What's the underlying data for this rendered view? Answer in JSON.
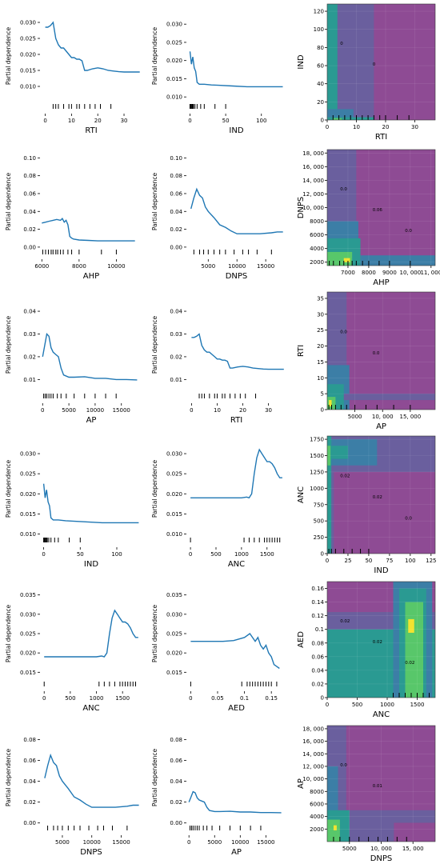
{
  "chart_data": [
    {
      "type": "line",
      "xlabel": "RTI",
      "ylabel": "Partial dependence",
      "xlim": [
        -2,
        37
      ],
      "ylim": [
        0.005,
        0.034
      ],
      "xticks": [
        0,
        10,
        20,
        30
      ],
      "yticks": [
        0.01,
        0.015,
        0.02,
        0.025,
        0.03
      ],
      "x": [
        0,
        1,
        2,
        3,
        4,
        5,
        6,
        7,
        8,
        9,
        10,
        11,
        12,
        13,
        14,
        15,
        16,
        18,
        20,
        22,
        24,
        26,
        28,
        30,
        32,
        34,
        36
      ],
      "y": [
        0.0285,
        0.0285,
        0.029,
        0.03,
        0.025,
        0.023,
        0.022,
        0.022,
        0.021,
        0.02,
        0.019,
        0.019,
        0.0185,
        0.0185,
        0.018,
        0.015,
        0.015,
        0.0155,
        0.0158,
        0.0155,
        0.015,
        0.0148,
        0.0146,
        0.0145,
        0.0145,
        0.0145,
        0.0145
      ],
      "rug": [
        3,
        4,
        5,
        7,
        9,
        10,
        12,
        13,
        15,
        17,
        19,
        21,
        25
      ]
    },
    {
      "type": "line",
      "xlabel": "IND",
      "ylabel": "Partial dependence",
      "xlim": [
        -5,
        135
      ],
      "ylim": [
        0.0085,
        0.034
      ],
      "xticks": [
        0,
        50,
        100
      ],
      "yticks": [
        0.01,
        0.015,
        0.02,
        0.025,
        0.03
      ],
      "x": [
        0,
        2,
        3,
        4,
        6,
        8,
        10,
        13,
        15,
        20,
        30,
        40,
        60,
        80,
        100,
        130
      ],
      "y": [
        0.0225,
        0.019,
        0.02,
        0.021,
        0.018,
        0.017,
        0.014,
        0.0135,
        0.0135,
        0.0135,
        0.0133,
        0.0132,
        0.013,
        0.0128,
        0.0128,
        0.0128
      ],
      "rug": [
        0,
        1,
        2,
        3,
        4,
        5,
        7,
        10,
        15,
        20,
        35,
        50
      ]
    },
    {
      "type": "heatmap",
      "xlabel": "RTI",
      "ylabel": "IND",
      "xlim": [
        0,
        37
      ],
      "ylim": [
        0,
        128
      ],
      "xticks": [
        0,
        10,
        20,
        30
      ],
      "yticks": [
        0,
        20,
        40,
        60,
        80,
        100,
        120
      ],
      "contour_labels": [
        "0",
        "0"
      ],
      "rug": [
        2,
        4,
        6,
        8,
        10,
        12,
        14,
        16,
        18,
        20,
        24,
        28
      ]
    },
    {
      "type": "line",
      "xlabel": "AHP",
      "ylabel": "Partial dependence",
      "xlim": [
        5900,
        11400
      ],
      "ylim": [
        -0.001,
        0.103
      ],
      "xticks": [
        6000,
        8000,
        10000
      ],
      "yticks": [
        0.0,
        0.02,
        0.04,
        0.06,
        0.08,
        0.1
      ],
      "x": [
        6000,
        6200,
        6400,
        6600,
        6800,
        7000,
        7100,
        7200,
        7300,
        7400,
        7500,
        7600,
        7700,
        8000,
        8500,
        9000,
        9500,
        10000,
        11000
      ],
      "y": [
        0.027,
        0.028,
        0.029,
        0.03,
        0.031,
        0.03,
        0.032,
        0.028,
        0.03,
        0.025,
        0.012,
        0.01,
        0.009,
        0.008,
        0.0075,
        0.007,
        0.007,
        0.007,
        0.007
      ],
      "rug": [
        6050,
        6200,
        6350,
        6500,
        6600,
        6750,
        6850,
        7000,
        7150,
        7400,
        7600,
        8000,
        9200,
        10000
      ]
    },
    {
      "type": "line",
      "xlabel": "DNPS",
      "ylabel": "Partial dependence",
      "xlim": [
        1200,
        18600
      ],
      "ylim": [
        -0.001,
        0.103
      ],
      "xticks": [
        5000,
        10000,
        15000
      ],
      "yticks": [
        0.0,
        0.02,
        0.04,
        0.06,
        0.08,
        0.1
      ],
      "x": [
        2000,
        2500,
        3000,
        3500,
        4000,
        4500,
        5000,
        6000,
        7000,
        8000,
        9000,
        10000,
        12000,
        14000,
        16000,
        17000,
        18000
      ],
      "y": [
        0.043,
        0.055,
        0.065,
        0.058,
        0.055,
        0.045,
        0.04,
        0.033,
        0.025,
        0.022,
        0.018,
        0.015,
        0.015,
        0.015,
        0.016,
        0.017,
        0.017
      ],
      "rug": [
        2500,
        3500,
        4200,
        5000,
        6000,
        7000,
        8000,
        9500,
        11000,
        12000,
        13500,
        16000
      ]
    },
    {
      "type": "heatmap",
      "xlabel": "AHP",
      "ylabel": "DNPS",
      "xlim": [
        6000,
        11200
      ],
      "ylim": [
        1500,
        18500
      ],
      "xticks": [
        7000,
        8000,
        9000,
        10000,
        11000
      ],
      "yticks": [
        2000,
        4000,
        6000,
        8000,
        10000,
        12000,
        14000,
        16000,
        18000
      ],
      "contour_labels": [
        "0.0",
        "0.06",
        "0.0"
      ],
      "rug": [
        6100,
        6300,
        6600,
        6800,
        7000,
        7200,
        7400,
        7700,
        8000,
        8500,
        9000,
        10000
      ]
    },
    {
      "type": "line",
      "xlabel": "AP",
      "ylabel": "Partial dependence",
      "xlim": [
        -500,
        19000
      ],
      "ylim": [
        0.0045,
        0.046
      ],
      "xticks": [
        0,
        5000,
        10000,
        15000
      ],
      "yticks": [
        0.01,
        0.02,
        0.03,
        0.04
      ],
      "x": [
        0,
        400,
        800,
        1200,
        1600,
        2000,
        2500,
        3000,
        3500,
        4000,
        5000,
        6000,
        8000,
        10000,
        12000,
        14000,
        16000,
        18000
      ],
      "y": [
        0.02,
        0.025,
        0.03,
        0.029,
        0.024,
        0.022,
        0.021,
        0.02,
        0.015,
        0.012,
        0.011,
        0.011,
        0.0112,
        0.0105,
        0.0105,
        0.01,
        0.01,
        0.0098
      ],
      "rug": [
        200,
        500,
        800,
        1200,
        1600,
        2000,
        2800,
        3500,
        4500,
        6000,
        8000,
        10000,
        12000,
        14000
      ]
    },
    {
      "type": "line",
      "xlabel": "RTI",
      "ylabel": "Partial dependence",
      "xlim": [
        -2,
        37
      ],
      "ylim": [
        0.0045,
        0.046
      ],
      "xticks": [
        0,
        10,
        20,
        30
      ],
      "yticks": [
        0.01,
        0.02,
        0.03,
        0.04
      ],
      "x": [
        0,
        1,
        2,
        3,
        4,
        5,
        6,
        7,
        8,
        9,
        10,
        11,
        12,
        13,
        14,
        15,
        16,
        18,
        20,
        22,
        24,
        26,
        28,
        30,
        32,
        34,
        36
      ],
      "y": [
        0.0285,
        0.0285,
        0.029,
        0.03,
        0.025,
        0.023,
        0.022,
        0.022,
        0.021,
        0.02,
        0.019,
        0.019,
        0.0185,
        0.0185,
        0.018,
        0.015,
        0.015,
        0.0155,
        0.0158,
        0.0155,
        0.015,
        0.0148,
        0.0146,
        0.0145,
        0.0145,
        0.0145,
        0.0145
      ],
      "rug": [
        3,
        4,
        5,
        7,
        9,
        10,
        12,
        13,
        15,
        17,
        19,
        21,
        25
      ]
    },
    {
      "type": "heatmap",
      "xlabel": "AP",
      "ylabel": "RTI",
      "xlim": [
        0,
        19500
      ],
      "ylim": [
        0,
        37
      ],
      "xticks": [
        5000,
        10000,
        15000
      ],
      "yticks": [
        0,
        5,
        10,
        15,
        20,
        25,
        30,
        35
      ],
      "contour_labels": [
        "0.0",
        "0.0"
      ],
      "rug": [
        300,
        800,
        1500,
        2500,
        3500,
        5000,
        7000,
        9000,
        12000,
        15000
      ]
    },
    {
      "type": "line",
      "xlabel": "IND",
      "ylabel": "Partial dependence",
      "xlim": [
        -5,
        135
      ],
      "ylim": [
        0.0095,
        0.033
      ],
      "xticks": [
        0,
        50,
        100
      ],
      "yticks": [
        0.01,
        0.015,
        0.02,
        0.025,
        0.03
      ],
      "x": [
        0,
        2,
        3,
        4,
        6,
        8,
        10,
        13,
        15,
        20,
        30,
        40,
        60,
        80,
        100,
        130
      ],
      "y": [
        0.0225,
        0.019,
        0.02,
        0.021,
        0.018,
        0.017,
        0.014,
        0.0135,
        0.0135,
        0.0135,
        0.0133,
        0.0132,
        0.013,
        0.0128,
        0.0128,
        0.0128
      ],
      "rug": [
        0,
        1,
        2,
        3,
        4,
        5,
        7,
        10,
        15,
        20,
        35,
        50
      ]
    },
    {
      "type": "line",
      "xlabel": "ANC",
      "ylabel": "Partial dependence",
      "xlim": [
        -80,
        1880
      ],
      "ylim": [
        0.0095,
        0.033
      ],
      "xticks": [
        0,
        500,
        1000,
        1500
      ],
      "yticks": [
        0.01,
        0.015,
        0.02,
        0.025,
        0.03
      ],
      "x": [
        0,
        200,
        400,
        600,
        800,
        1000,
        1100,
        1150,
        1200,
        1250,
        1300,
        1350,
        1400,
        1450,
        1500,
        1550,
        1600,
        1650,
        1700,
        1750,
        1800
      ],
      "y": [
        0.019,
        0.019,
        0.019,
        0.019,
        0.019,
        0.019,
        0.0192,
        0.019,
        0.02,
        0.025,
        0.029,
        0.031,
        0.03,
        0.029,
        0.028,
        0.028,
        0.0275,
        0.0265,
        0.025,
        0.024,
        0.024
      ],
      "rug": [
        0,
        1050,
        1150,
        1250,
        1350,
        1450,
        1500,
        1550,
        1600,
        1650,
        1700,
        1750
      ]
    },
    {
      "type": "heatmap",
      "xlabel": "IND",
      "ylabel": "ANC",
      "xlim": [
        0,
        130
      ],
      "ylim": [
        0,
        1800
      ],
      "xticks": [
        0,
        25,
        50,
        75,
        100,
        125
      ],
      "yticks": [
        0,
        250,
        500,
        750,
        1000,
        1250,
        1500,
        1750
      ],
      "contour_labels": [
        "0.02",
        "0.02",
        "0.0"
      ],
      "rug": [
        2,
        5,
        10,
        20,
        30,
        40,
        50
      ]
    },
    {
      "type": "line",
      "xlabel": "ANC",
      "ylabel": "Partial dependence",
      "xlim": [
        -80,
        1880
      ],
      "ylim": [
        0.013,
        0.037
      ],
      "xticks": [
        0,
        500,
        1000,
        1500
      ],
      "yticks": [
        0.015,
        0.02,
        0.025,
        0.03,
        0.035
      ],
      "x": [
        0,
        200,
        400,
        600,
        800,
        1000,
        1100,
        1150,
        1200,
        1250,
        1300,
        1350,
        1400,
        1450,
        1500,
        1550,
        1600,
        1650,
        1700,
        1750,
        1800
      ],
      "y": [
        0.019,
        0.019,
        0.019,
        0.019,
        0.019,
        0.019,
        0.0192,
        0.019,
        0.02,
        0.025,
        0.029,
        0.031,
        0.03,
        0.029,
        0.028,
        0.028,
        0.0275,
        0.0265,
        0.025,
        0.024,
        0.024
      ],
      "rug": [
        0,
        1050,
        1150,
        1250,
        1350,
        1450,
        1500,
        1550,
        1600,
        1650,
        1700,
        1750
      ]
    },
    {
      "type": "line",
      "xlabel": "AED",
      "ylabel": "Partial dependence",
      "xlim": [
        -0.008,
        0.178
      ],
      "ylim": [
        0.013,
        0.037
      ],
      "xticks": [
        0.0,
        0.05,
        0.1,
        0.15
      ],
      "yticks": [
        0.015,
        0.02,
        0.025,
        0.03,
        0.035
      ],
      "x": [
        0,
        0.02,
        0.04,
        0.06,
        0.08,
        0.1,
        0.11,
        0.12,
        0.125,
        0.13,
        0.135,
        0.14,
        0.145,
        0.15,
        0.155,
        0.16,
        0.165
      ],
      "y": [
        0.023,
        0.023,
        0.023,
        0.023,
        0.0232,
        0.024,
        0.025,
        0.023,
        0.024,
        0.022,
        0.021,
        0.022,
        0.02,
        0.019,
        0.017,
        0.0165,
        0.016
      ],
      "rug": [
        0,
        0.095,
        0.105,
        0.11,
        0.115,
        0.12,
        0.125,
        0.13,
        0.135,
        0.14,
        0.145,
        0.15,
        0.16
      ]
    },
    {
      "type": "heatmap",
      "xlabel": "ANC",
      "ylabel": "AED",
      "xlim": [
        0,
        1800
      ],
      "ylim": [
        0,
        0.17
      ],
      "xticks": [
        0,
        500,
        1000,
        1500
      ],
      "yticks": [
        0,
        0.02,
        0.04,
        0.06,
        0.08,
        0.1,
        0.12,
        0.14,
        0.16
      ],
      "contour_labels": [
        "0.02",
        "0.02",
        "0.02"
      ],
      "rug": [
        1100,
        1200,
        1300,
        1400,
        1500,
        1600,
        1700
      ]
    },
    {
      "type": "line",
      "xlabel": "DNPS",
      "ylabel": "Partial dependence",
      "xlim": [
        1200,
        18600
      ],
      "ylim": [
        -0.001,
        0.088
      ],
      "xticks": [
        5000,
        10000,
        15000
      ],
      "yticks": [
        0.0,
        0.02,
        0.04,
        0.06,
        0.08
      ],
      "x": [
        2000,
        2500,
        3000,
        3500,
        4000,
        4500,
        5000,
        6000,
        7000,
        8000,
        9000,
        10000,
        12000,
        14000,
        16000,
        17000,
        18000
      ],
      "y": [
        0.043,
        0.055,
        0.065,
        0.058,
        0.055,
        0.045,
        0.04,
        0.033,
        0.025,
        0.022,
        0.018,
        0.015,
        0.015,
        0.015,
        0.016,
        0.017,
        0.017
      ],
      "rug": [
        2500,
        3500,
        4200,
        5000,
        6000,
        7000,
        8000,
        9500,
        11000,
        12000,
        13500,
        16000
      ]
    },
    {
      "type": "line",
      "xlabel": "AP",
      "ylabel": "Partial dependence",
      "xlim": [
        -500,
        19000
      ],
      "ylim": [
        -0.001,
        0.088
      ],
      "xticks": [
        0,
        5000,
        10000,
        15000
      ],
      "yticks": [
        0.0,
        0.02,
        0.04,
        0.06,
        0.08
      ],
      "x": [
        0,
        400,
        800,
        1200,
        1600,
        2000,
        2500,
        3000,
        3500,
        4000,
        5000,
        6000,
        8000,
        10000,
        12000,
        14000,
        16000,
        18000
      ],
      "y": [
        0.02,
        0.025,
        0.03,
        0.029,
        0.024,
        0.022,
        0.021,
        0.02,
        0.015,
        0.012,
        0.011,
        0.011,
        0.0112,
        0.0105,
        0.0105,
        0.01,
        0.01,
        0.0098
      ],
      "rug": [
        200,
        500,
        800,
        1200,
        1600,
        2000,
        2800,
        3500,
        4500,
        6000,
        8000,
        10000,
        12000,
        14000
      ]
    },
    {
      "type": "heatmap",
      "xlabel": "DNPS",
      "ylabel": "AP",
      "xlim": [
        1500,
        18500
      ],
      "ylim": [
        0,
        18500
      ],
      "xticks": [
        5000,
        10000,
        15000
      ],
      "yticks": [
        2000,
        4000,
        6000,
        8000,
        10000,
        12000,
        14000,
        16000,
        18000
      ],
      "contour_labels": [
        "0.0",
        "0.01"
      ],
      "rug": [
        2500,
        3500,
        5000,
        6500,
        8000,
        9500,
        11000,
        12500,
        14000
      ]
    }
  ],
  "colors": {
    "line": "#1f77b4",
    "purple": "#8e4b94",
    "violet": "#6a5f9e",
    "teal": "#2a9a92",
    "blue": "#3c7ea6",
    "green": "#58c76a",
    "yellow": "#f2e330"
  }
}
